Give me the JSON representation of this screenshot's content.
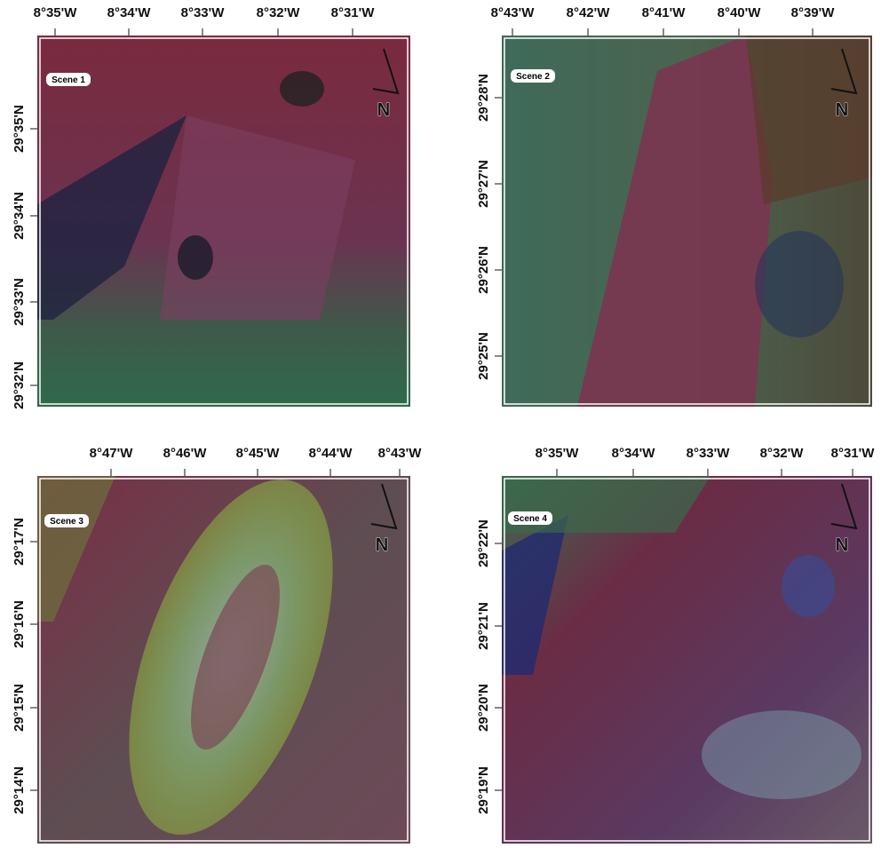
{
  "panels": [
    {
      "label": "Scene 1",
      "north": "N",
      "lon_labels": [
        "8°35'W",
        "8°34'W",
        "8°33'W",
        "8°32'W",
        "8°31'W"
      ],
      "lat_labels": [
        "29°35'N",
        "29°34'N",
        "29°33'N",
        "29°32'N"
      ]
    },
    {
      "label": "Scene 2",
      "north": "N",
      "lon_labels": [
        "8°43'W",
        "8°42'W",
        "8°41'W",
        "8°40'W",
        "8°39'W"
      ],
      "lat_labels": [
        "29°28'N",
        "29°27'N",
        "29°26'N",
        "29°25'N"
      ]
    },
    {
      "label": "Scene 3",
      "north": "N",
      "lon_labels": [
        "8°47'W",
        "8°46'W",
        "8°45'W",
        "8°44'W",
        "8°43'W"
      ],
      "lat_labels": [
        "29°17'N",
        "29°16'N",
        "29°15'N",
        "29°14'N"
      ]
    },
    {
      "label": "Scene 4",
      "north": "N",
      "lon_labels": [
        "8°35'W",
        "8°34'W",
        "8°33'W",
        "8°32'W",
        "8°31'W"
      ],
      "lat_labels": [
        "29°22'N",
        "29°21'N",
        "29°20'N",
        "29°19'N"
      ]
    }
  ]
}
